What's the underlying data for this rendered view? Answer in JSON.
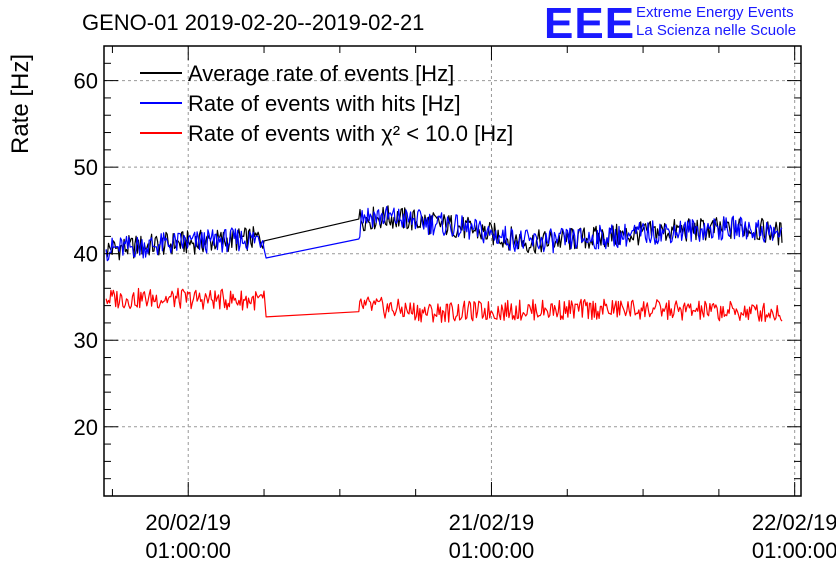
{
  "header": {
    "title": "GENO-01 2019-02-20--2019-02-21",
    "logo_letters": "EEE",
    "logo_line1": "Extreme Energy Events",
    "logo_line2": "La Scienza nelle Scuole"
  },
  "chart_data": {
    "type": "line",
    "title": "GENO-01 2019-02-20--2019-02-21",
    "xlabel": "",
    "ylabel": "Rate [Hz]",
    "xlim": [
      "2019-02-19 18:20",
      "2019-02-22 01:30"
    ],
    "ylim": [
      12,
      64
    ],
    "grid": true,
    "legend_position": "top-left",
    "x_ticks": [
      {
        "x": "2019-02-20 01:00",
        "line1": "20/02/19",
        "line2": "01:00:00"
      },
      {
        "x": "2019-02-21 01:00",
        "line1": "21/02/19",
        "line2": "01:00:00"
      },
      {
        "x": "2019-02-22 01:00",
        "line1": "22/02/19",
        "line2": "01:00:00"
      }
    ],
    "y_ticks": [
      20,
      30,
      40,
      50,
      60
    ],
    "series": [
      {
        "name": "Average rate of events [Hz]",
        "color": "#000000",
        "points": [
          {
            "x": "2019-02-19 18:30",
            "y": 40.5
          },
          {
            "x": "2019-02-20 00:00",
            "y": 41.2
          },
          {
            "x": "2019-02-20 07:00",
            "y": 41.8
          },
          {
            "x": "2019-02-20 14:30",
            "y": 44.0
          },
          {
            "x": "2019-02-20 17:00",
            "y": 44.2
          },
          {
            "x": "2019-02-20 22:00",
            "y": 43.2
          },
          {
            "x": "2019-02-21 04:00",
            "y": 41.3
          },
          {
            "x": "2019-02-21 09:00",
            "y": 41.8
          },
          {
            "x": "2019-02-21 15:00",
            "y": 42.6
          },
          {
            "x": "2019-02-21 21:00",
            "y": 43.0
          },
          {
            "x": "2019-02-22 00:00",
            "y": 42.3
          }
        ]
      },
      {
        "name": "Rate of events with hits [Hz]",
        "color": "#0000ff",
        "points": [
          {
            "x": "2019-02-19 18:30",
            "y": 40.5
          },
          {
            "x": "2019-02-20 00:00",
            "y": 41.2
          },
          {
            "x": "2019-02-20 07:00",
            "y": 41.8
          },
          {
            "x": "2019-02-20 07:10",
            "y": 39.5
          },
          {
            "x": "2019-02-20 14:30",
            "y": 41.7
          },
          {
            "x": "2019-02-20 14:40",
            "y": 44.5
          },
          {
            "x": "2019-02-20 17:00",
            "y": 44.2
          },
          {
            "x": "2019-02-20 22:00",
            "y": 43.2
          },
          {
            "x": "2019-02-21 04:00",
            "y": 41.3
          },
          {
            "x": "2019-02-21 09:00",
            "y": 41.8
          },
          {
            "x": "2019-02-21 15:00",
            "y": 42.6
          },
          {
            "x": "2019-02-21 21:00",
            "y": 43.0
          },
          {
            "x": "2019-02-22 00:00",
            "y": 42.3
          }
        ]
      },
      {
        "name": "Rate of events with χ² < 10.0 [Hz]",
        "color": "#ff0000",
        "points": [
          {
            "x": "2019-02-19 18:30",
            "y": 34.8
          },
          {
            "x": "2019-02-20 00:00",
            "y": 34.8
          },
          {
            "x": "2019-02-20 07:00",
            "y": 34.6
          },
          {
            "x": "2019-02-20 07:10",
            "y": 32.7
          },
          {
            "x": "2019-02-20 14:30",
            "y": 33.3
          },
          {
            "x": "2019-02-20 14:40",
            "y": 34.0
          },
          {
            "x": "2019-02-20 20:00",
            "y": 33.2
          },
          {
            "x": "2019-02-21 04:00",
            "y": 33.5
          },
          {
            "x": "2019-02-21 12:00",
            "y": 33.6
          },
          {
            "x": "2019-02-21 20:00",
            "y": 33.3
          },
          {
            "x": "2019-02-22 00:00",
            "y": 33.2
          }
        ]
      }
    ]
  }
}
